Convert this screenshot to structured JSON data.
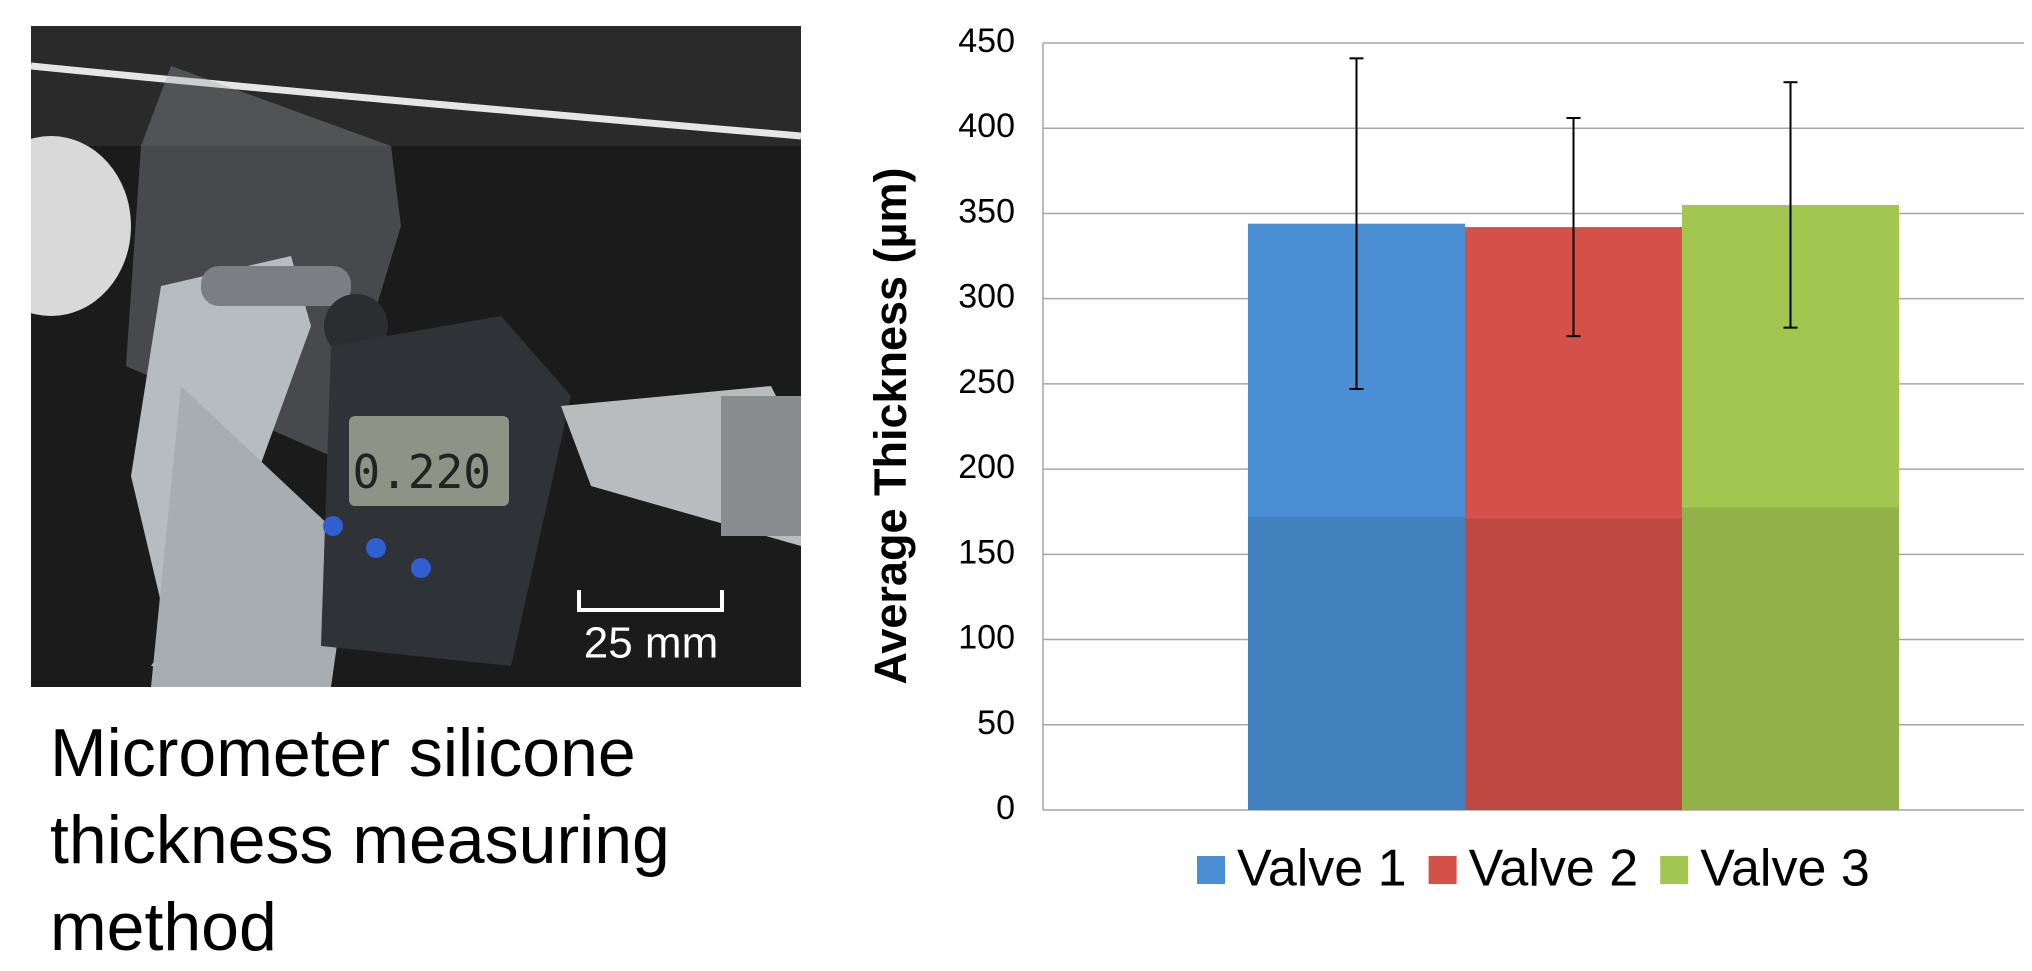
{
  "photo": {
    "scale_label": "25 mm",
    "caption": "Micrometer silicone thickness measuring method"
  },
  "chart_data": {
    "type": "bar",
    "y_label": "Average Thickness (µm)",
    "series": [
      {
        "name": "Valve 1",
        "color": "#4a8fd4",
        "values": [
          344
        ],
        "errors": [
          97
        ]
      },
      {
        "name": "Valve 2",
        "color": "#d4514a",
        "values": [
          342
        ],
        "errors": [
          64
        ]
      },
      {
        "name": "Valve 3",
        "color": "#a3c651",
        "values": [
          355
        ],
        "errors": [
          72
        ]
      }
    ],
    "ylim": [
      0,
      450
    ],
    "yticks": [
      0,
      50,
      100,
      150,
      200,
      250,
      300,
      350,
      400,
      450
    ],
    "grid": true,
    "legend": "bottom"
  }
}
